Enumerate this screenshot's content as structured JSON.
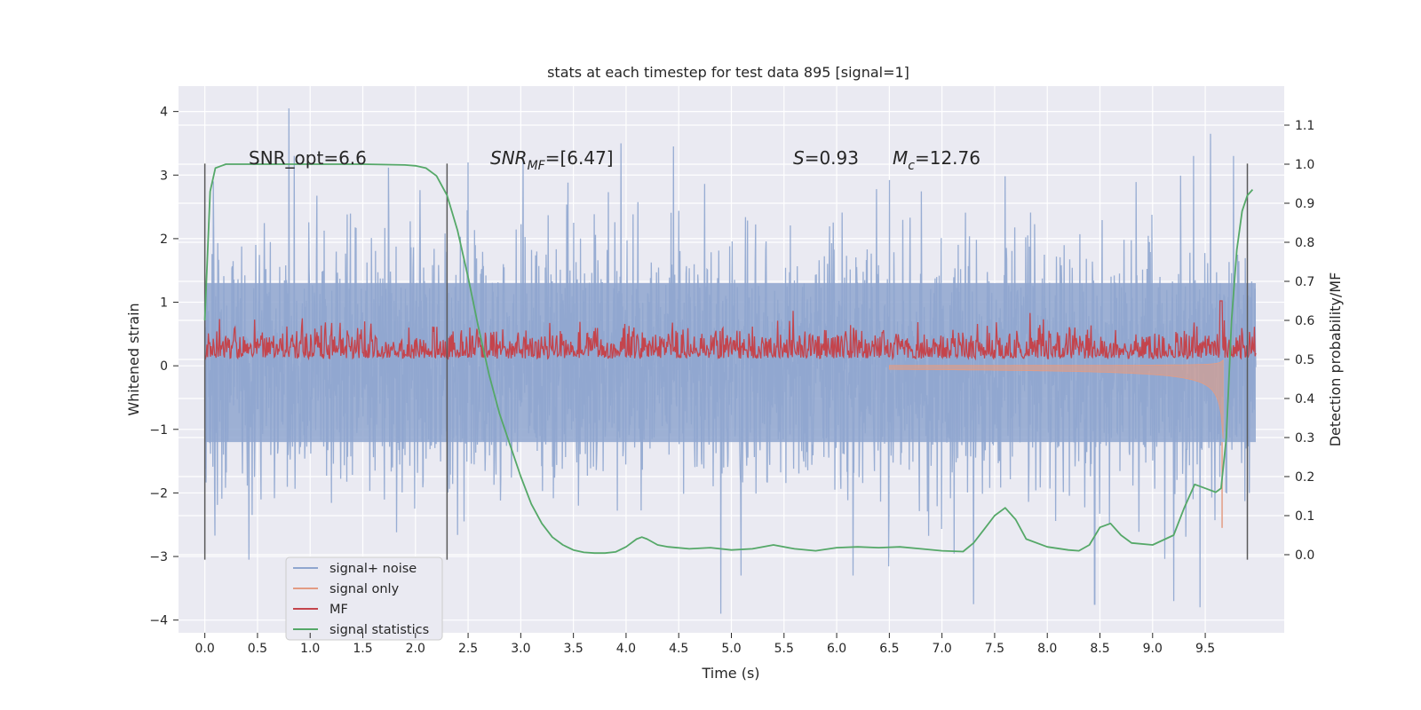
{
  "chart_data": {
    "type": "line",
    "title": "stats at each timestep for test data 895 [signal=1]",
    "xlabel": "Time (s)",
    "ylabel_left": "Whitened strain",
    "ylabel_right": "Detection probability/MF",
    "xlim": [
      -0.25,
      10.25
    ],
    "ylim_left": [
      -4.2,
      4.4
    ],
    "ylim_right": [
      -0.2,
      1.2
    ],
    "x_ticks": [
      "0.0",
      "0.5",
      "1.0",
      "1.5",
      "2.0",
      "2.5",
      "3.0",
      "3.5",
      "4.0",
      "4.5",
      "5.0",
      "5.5",
      "6.0",
      "6.5",
      "7.0",
      "7.5",
      "8.0",
      "8.5",
      "9.0",
      "9.5"
    ],
    "y_left_ticks": [
      "4",
      "3",
      "2",
      "1",
      "0",
      "−1",
      "−2",
      "−3",
      "−4"
    ],
    "y_right_ticks": [
      "1.1",
      "1.0",
      "0.9",
      "0.8",
      "0.7",
      "0.6",
      "0.5",
      "0.4",
      "0.3",
      "0.2",
      "0.1",
      "0.0"
    ],
    "annotations": {
      "snr_opt": "SNR_opt=6.6",
      "snr_mf_main": "SNR",
      "snr_mf_sub": "MF",
      "snr_mf_rest": "=[6.47]",
      "s_main": "S",
      "s_rest": "=0.93",
      "mc_main": "M",
      "mc_sub": "c",
      "mc_rest": "=12.76"
    },
    "vertical_lines_x": [
      0.0,
      2.3,
      9.9
    ],
    "vertical_lines_range_left": [
      -3.05,
      3.18
    ],
    "legend": {
      "placement": "lower-left",
      "entries": [
        "signal+ noise",
        "signal only",
        "MF",
        "signal statistics"
      ]
    },
    "colors": {
      "signal_noise": "#8fa6cf",
      "signal_only": "#e39c84",
      "mf": "#c4444c",
      "signal_statistics": "#55a868",
      "background": "#eaeaf2",
      "grid": "#ffffff",
      "vline": "#5a5a5a"
    },
    "series": {
      "signal_noise": {
        "axis": "left",
        "x_start": 0.0,
        "x_end": 9.98,
        "band": [
          -1.2,
          1.3
        ],
        "extreme_peaks": [
          {
            "x": 0.8,
            "y": 4.05
          },
          {
            "x": 0.08,
            "y": 2.9
          },
          {
            "x": 2.5,
            "y": 3.2
          },
          {
            "x": 3.95,
            "y": 3.5
          },
          {
            "x": 4.45,
            "y": 3.45
          },
          {
            "x": 9.55,
            "y": 3.65
          },
          {
            "x": 4.9,
            "y": -3.9
          },
          {
            "x": 7.3,
            "y": -3.75
          },
          {
            "x": 9.2,
            "y": -3.7
          },
          {
            "x": 8.45,
            "y": -3.75
          },
          {
            "x": 9.45,
            "y": -3.8
          },
          {
            "x": 0.42,
            "y": -3.05
          }
        ]
      },
      "signal_only": {
        "axis": "left",
        "note_free": true,
        "x_start": 6.5,
        "x_end": 9.67
      },
      "mf": {
        "axis": "right",
        "baseline": 0.525,
        "spread": 0.04,
        "peak": {
          "x": 9.65,
          "y": 0.65
        }
      },
      "signal_statistics": {
        "axis": "right",
        "x": [
          0.0,
          0.05,
          0.1,
          0.15,
          0.2,
          0.3,
          0.5,
          1.0,
          1.5,
          1.9,
          2.0,
          2.1,
          2.2,
          2.3,
          2.4,
          2.5,
          2.6,
          2.7,
          2.8,
          2.9,
          3.0,
          3.1,
          3.2,
          3.3,
          3.4,
          3.5,
          3.6,
          3.7,
          3.8,
          3.9,
          4.0,
          4.1,
          4.15,
          4.2,
          4.3,
          4.4,
          4.6,
          4.8,
          5.0,
          5.2,
          5.4,
          5.6,
          5.8,
          6.0,
          6.2,
          6.4,
          6.6,
          6.8,
          7.0,
          7.2,
          7.3,
          7.4,
          7.5,
          7.6,
          7.7,
          7.8,
          8.0,
          8.2,
          8.3,
          8.4,
          8.5,
          8.6,
          8.7,
          8.8,
          9.0,
          9.2,
          9.3,
          9.4,
          9.5,
          9.6,
          9.65,
          9.7,
          9.75,
          9.8,
          9.85,
          9.9,
          9.95
        ],
        "y": [
          0.6,
          0.93,
          0.99,
          0.995,
          1.0,
          1.0,
          1.0,
          1.0,
          1.0,
          0.998,
          0.996,
          0.99,
          0.97,
          0.92,
          0.83,
          0.71,
          0.58,
          0.46,
          0.36,
          0.28,
          0.2,
          0.13,
          0.08,
          0.045,
          0.025,
          0.012,
          0.006,
          0.004,
          0.004,
          0.007,
          0.02,
          0.04,
          0.045,
          0.04,
          0.025,
          0.02,
          0.015,
          0.018,
          0.012,
          0.015,
          0.025,
          0.015,
          0.01,
          0.018,
          0.02,
          0.018,
          0.02,
          0.015,
          0.01,
          0.008,
          0.03,
          0.065,
          0.1,
          0.12,
          0.09,
          0.04,
          0.02,
          0.012,
          0.01,
          0.025,
          0.07,
          0.08,
          0.05,
          0.03,
          0.025,
          0.05,
          0.12,
          0.18,
          0.17,
          0.16,
          0.17,
          0.3,
          0.6,
          0.78,
          0.88,
          0.92,
          0.935
        ]
      }
    }
  }
}
